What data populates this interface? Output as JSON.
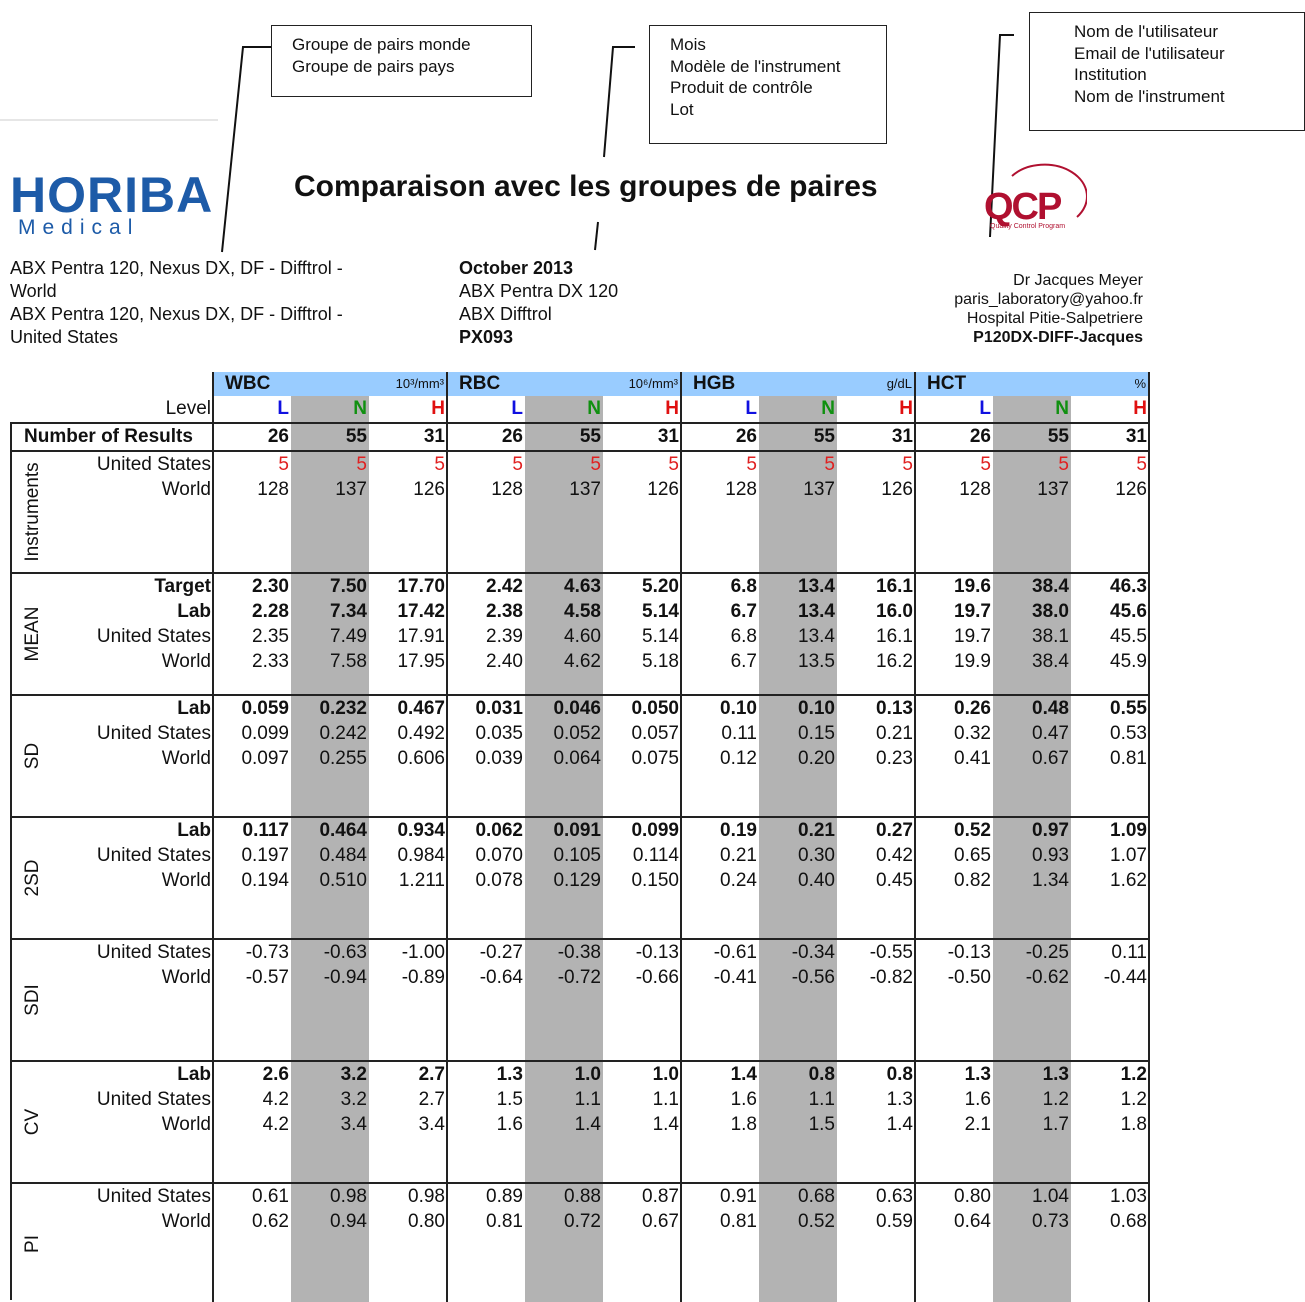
{
  "callouts": [
    [
      "Groupe de pairs monde",
      "Groupe de pairs pays"
    ],
    [
      "Mois",
      "Modèle de l'instrument",
      "Produit de contrôle",
      "Lot"
    ],
    [
      "Nom de l'utilisateur",
      "Email de l'utilisateur",
      "Institution",
      "Nom de l'instrument"
    ]
  ],
  "logo": {
    "name": "HORIBA",
    "sub": "Medical"
  },
  "title": "Comparaison avec les groupes de paires",
  "qcp": {
    "name": "QCP",
    "sub": "Quality Control Program"
  },
  "peer_groups": [
    "ABX Pentra 120, Nexus DX, DF - Difftrol - World",
    "ABX Pentra 120, Nexus DX, DF - Difftrol - United States"
  ],
  "run_info": [
    "October 2013",
    "ABX Pentra DX 120",
    "ABX Difftrol",
    "PX093"
  ],
  "user_info": [
    "Dr Jacques Meyer",
    "paris_laboratory@yahoo.fr",
    "Hospital Pitie-Salpetriere",
    "P120DX-DIFF-Jacques"
  ],
  "table": {
    "parameters": [
      {
        "name": "WBC",
        "unit": "10³/mm³"
      },
      {
        "name": "RBC",
        "unit": "10⁶/mm³"
      },
      {
        "name": "HGB",
        "unit": "g/dL"
      },
      {
        "name": "HCT",
        "unit": "%"
      }
    ],
    "level_label": "Level",
    "levels": [
      {
        "name": "L",
        "color": "#1010e0"
      },
      {
        "name": "N",
        "color": "#109010"
      },
      {
        "name": "H",
        "color": "#e01010"
      }
    ],
    "count_row": {
      "label": "Number of Results",
      "values": [
        "26",
        "55",
        "31",
        "26",
        "55",
        "31",
        "26",
        "55",
        "31",
        "26",
        "55",
        "31"
      ]
    },
    "groups": [
      {
        "name": "Instruments",
        "rows": [
          {
            "label": "United States",
            "color": "#e02020",
            "values": [
              "5",
              "5",
              "5",
              "5",
              "5",
              "5",
              "5",
              "5",
              "5",
              "5",
              "5",
              "5"
            ]
          },
          {
            "label": "World",
            "values": [
              "128",
              "137",
              "126",
              "128",
              "137",
              "126",
              "128",
              "137",
              "126",
              "128",
              "137",
              "126"
            ]
          }
        ]
      },
      {
        "name": "MEAN",
        "rows": [
          {
            "label": "Target",
            "bold": true,
            "values": [
              "2.30",
              "7.50",
              "17.70",
              "2.42",
              "4.63",
              "5.20",
              "6.8",
              "13.4",
              "16.1",
              "19.6",
              "38.4",
              "46.3"
            ]
          },
          {
            "label": "Lab",
            "bold": true,
            "values": [
              "2.28",
              "7.34",
              "17.42",
              "2.38",
              "4.58",
              "5.14",
              "6.7",
              "13.4",
              "16.0",
              "19.7",
              "38.0",
              "45.6"
            ]
          },
          {
            "label": "United States",
            "values": [
              "2.35",
              "7.49",
              "17.91",
              "2.39",
              "4.60",
              "5.14",
              "6.8",
              "13.4",
              "16.1",
              "19.7",
              "38.1",
              "45.5"
            ]
          },
          {
            "label": "World",
            "values": [
              "2.33",
              "7.58",
              "17.95",
              "2.40",
              "4.62",
              "5.18",
              "6.7",
              "13.5",
              "16.2",
              "19.9",
              "38.4",
              "45.9"
            ]
          }
        ]
      },
      {
        "name": "SD",
        "rows": [
          {
            "label": "Lab",
            "bold": true,
            "values": [
              "0.059",
              "0.232",
              "0.467",
              "0.031",
              "0.046",
              "0.050",
              "0.10",
              "0.10",
              "0.13",
              "0.26",
              "0.48",
              "0.55"
            ]
          },
          {
            "label": "United States",
            "values": [
              "0.099",
              "0.242",
              "0.492",
              "0.035",
              "0.052",
              "0.057",
              "0.11",
              "0.15",
              "0.21",
              "0.32",
              "0.47",
              "0.53"
            ]
          },
          {
            "label": "World",
            "values": [
              "0.097",
              "0.255",
              "0.606",
              "0.039",
              "0.064",
              "0.075",
              "0.12",
              "0.20",
              "0.23",
              "0.41",
              "0.67",
              "0.81"
            ]
          }
        ]
      },
      {
        "name": "2SD",
        "rows": [
          {
            "label": "Lab",
            "bold": true,
            "values": [
              "0.117",
              "0.464",
              "0.934",
              "0.062",
              "0.091",
              "0.099",
              "0.19",
              "0.21",
              "0.27",
              "0.52",
              "0.97",
              "1.09"
            ]
          },
          {
            "label": "United States",
            "values": [
              "0.197",
              "0.484",
              "0.984",
              "0.070",
              "0.105",
              "0.114",
              "0.21",
              "0.30",
              "0.42",
              "0.65",
              "0.93",
              "1.07"
            ]
          },
          {
            "label": "World",
            "values": [
              "0.194",
              "0.510",
              "1.211",
              "0.078",
              "0.129",
              "0.150",
              "0.24",
              "0.40",
              "0.45",
              "0.82",
              "1.34",
              "1.62"
            ]
          }
        ]
      },
      {
        "name": "SDI",
        "rows": [
          {
            "label": "United States",
            "values": [
              "-0.73",
              "-0.63",
              "-1.00",
              "-0.27",
              "-0.38",
              "-0.13",
              "-0.61",
              "-0.34",
              "-0.55",
              "-0.13",
              "-0.25",
              "0.11"
            ]
          },
          {
            "label": "World",
            "values": [
              "-0.57",
              "-0.94",
              "-0.89",
              "-0.64",
              "-0.72",
              "-0.66",
              "-0.41",
              "-0.56",
              "-0.82",
              "-0.50",
              "-0.62",
              "-0.44"
            ]
          }
        ]
      },
      {
        "name": "CV",
        "rows": [
          {
            "label": "Lab",
            "bold": true,
            "values": [
              "2.6",
              "3.2",
              "2.7",
              "1.3",
              "1.0",
              "1.0",
              "1.4",
              "0.8",
              "0.8",
              "1.3",
              "1.3",
              "1.2"
            ]
          },
          {
            "label": "United States",
            "values": [
              "4.2",
              "3.2",
              "2.7",
              "1.5",
              "1.1",
              "1.1",
              "1.6",
              "1.1",
              "1.3",
              "1.6",
              "1.2",
              "1.2"
            ]
          },
          {
            "label": "World",
            "values": [
              "4.2",
              "3.4",
              "3.4",
              "1.6",
              "1.4",
              "1.4",
              "1.8",
              "1.5",
              "1.4",
              "2.1",
              "1.7",
              "1.8"
            ]
          }
        ]
      },
      {
        "name": "PI",
        "rows": [
          {
            "label": "United States",
            "values": [
              "0.61",
              "0.98",
              "0.98",
              "0.89",
              "0.88",
              "0.87",
              "0.91",
              "0.68",
              "0.63",
              "0.80",
              "1.04",
              "1.03"
            ]
          },
          {
            "label": "World",
            "values": [
              "0.62",
              "0.94",
              "0.80",
              "0.81",
              "0.72",
              "0.67",
              "0.81",
              "0.52",
              "0.59",
              "0.64",
              "0.73",
              "0.68"
            ]
          }
        ]
      }
    ]
  }
}
